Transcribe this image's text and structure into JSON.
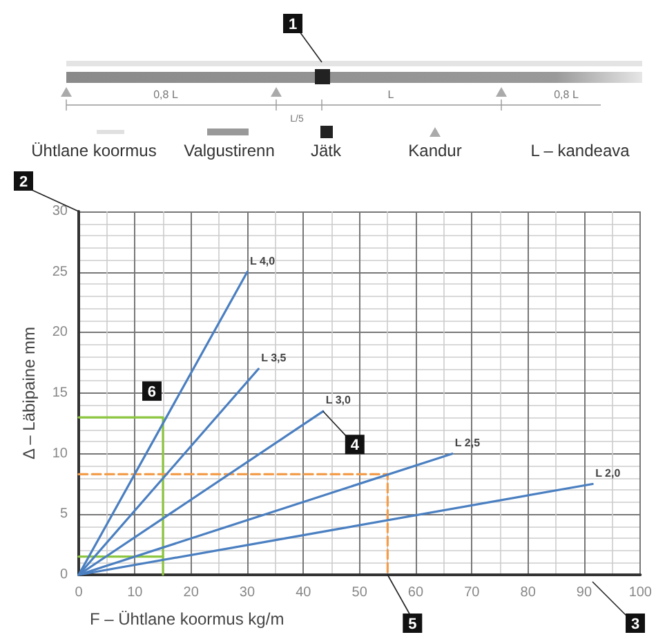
{
  "chart_data": {
    "type": "line",
    "xlabel": "F – Ühtlane koormus kg/m",
    "ylabel": "Δ – Läbipaine mm",
    "xlim": [
      0,
      100
    ],
    "xticks": [
      0,
      10,
      20,
      30,
      40,
      50,
      60,
      70,
      80,
      90,
      100
    ],
    "ylim": [
      0,
      30
    ],
    "yticks": [
      0,
      5,
      10,
      15,
      20,
      25,
      30
    ],
    "grid": true,
    "marker": "none",
    "line_style": "solid",
    "series": [
      {
        "name": "L 4,0",
        "color": "#4a7fc1",
        "x": [
          0,
          30
        ],
        "values": [
          0,
          25
        ]
      },
      {
        "name": "L 3,5",
        "color": "#4a7fc1",
        "x": [
          0,
          32
        ],
        "values": [
          0,
          17
        ]
      },
      {
        "name": "L 3,0",
        "color": "#4a7fc1",
        "x": [
          0,
          43.5
        ],
        "values": [
          0,
          13.5
        ]
      },
      {
        "name": "L 2,5",
        "color": "#4a7fc1",
        "x": [
          0,
          66.5
        ],
        "values": [
          0,
          10
        ]
      },
      {
        "name": "L 2,0",
        "color": "#4a7fc1",
        "x": [
          0,
          91.5
        ],
        "values": [
          0,
          7.5
        ]
      },
      {
        "color": "#8dc63f",
        "x": [
          0,
          15,
          15
        ],
        "values": [
          13,
          13,
          0
        ]
      },
      {
        "color": "#8dc63f",
        "x": [
          0,
          15
        ],
        "values": [
          1.5,
          1.5
        ]
      },
      {
        "color": "#f39c4a",
        "line_style": "dashed",
        "x": [
          0,
          55,
          55
        ],
        "values": [
          8.3,
          8.3,
          0
        ]
      }
    ],
    "annotations": [
      "0,8 L",
      "L/5",
      "L",
      "0,8 L",
      "Ühtlane koormus",
      "Valgustirenn",
      "Jätk",
      "Kandur",
      "L – kandeava",
      "1",
      "2",
      "3",
      {
        "text": "4",
        "x": 43.5,
        "y": 13.5
      },
      {
        "text": "5",
        "x": 55,
        "y": 0
      },
      {
        "text": "6",
        "x": 15,
        "y": 13
      }
    ]
  }
}
